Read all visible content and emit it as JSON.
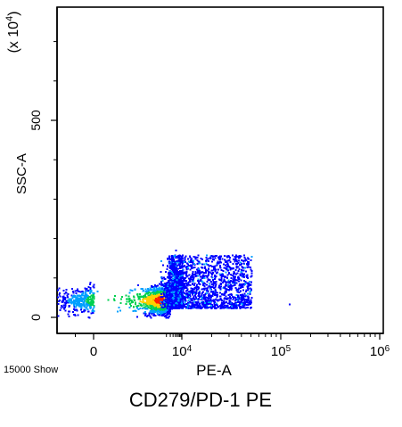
{
  "chart_data": {
    "type": "scatter",
    "title": "",
    "subtitle": "",
    "xlabel": "PE-A",
    "ylabel": "SSC-A",
    "y_multiplier_label": "(x 10^4)",
    "caption": "CD279/PD-1  PE",
    "event_count_text": "15000 Show",
    "x_scale": "biexponential",
    "y_scale": "linear",
    "xlim": [
      -1000,
      1000000
    ],
    "ylim": [
      -5,
      800
    ],
    "x_ticks": [
      {
        "value": 0,
        "label": "0"
      },
      {
        "value": 10000,
        "label": "10",
        "exponent": "4"
      },
      {
        "value": 100000,
        "label": "10",
        "exponent": "5"
      },
      {
        "value": 1000000,
        "label": "10",
        "exponent": "6"
      }
    ],
    "y_ticks": [
      {
        "value": 0,
        "label": "0"
      },
      {
        "value": 500,
        "label": "500"
      }
    ],
    "grid": false,
    "legend": "none",
    "density_colors": [
      "#0000ff",
      "#00a0ff",
      "#00d050",
      "#ffd000",
      "#ff2000"
    ],
    "population": {
      "description": "dense low population near PE-A 0-1000 and SSC-A 20-60 with sparse tail to PE-A ~50000",
      "core_center": {
        "x": 1000,
        "y": 45
      },
      "core_size": {
        "x": 1500,
        "y": 30
      },
      "tail_x_range": [
        2000,
        50000
      ],
      "tail_y_range": [
        25,
        160
      ],
      "outliers": [
        {
          "x": 120000,
          "y": 35
        },
        {
          "x": 40000,
          "y": 45
        }
      ]
    }
  }
}
